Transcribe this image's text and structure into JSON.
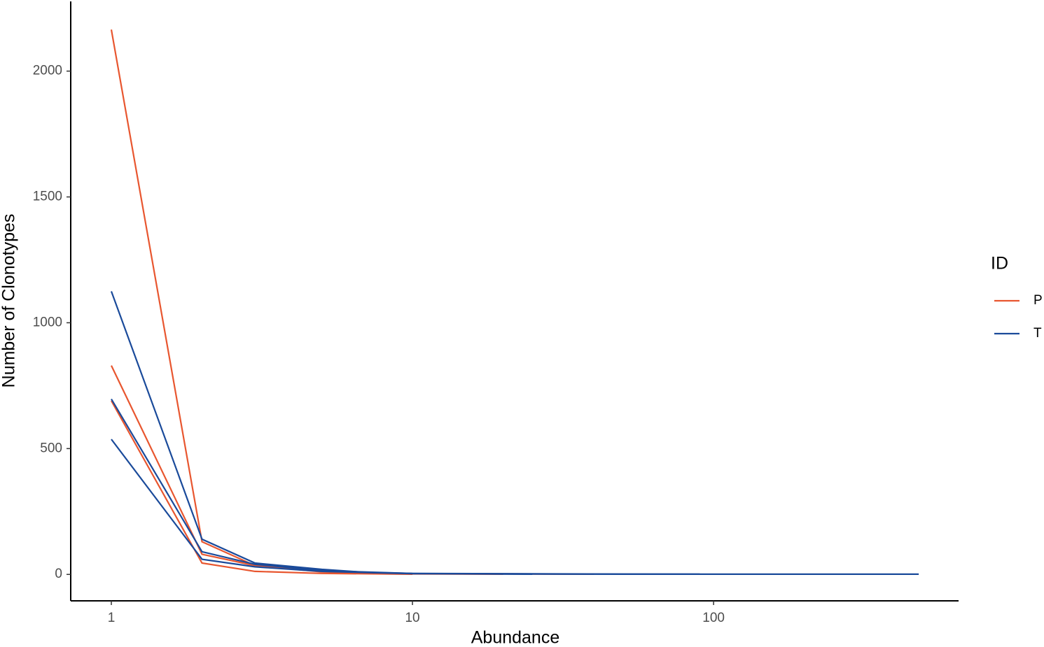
{
  "chart_data": {
    "type": "line",
    "x_label": "Abundance",
    "y_label": "Number of Clonotypes",
    "xscale": "log",
    "xlim": [
      0.733,
      651
    ],
    "xticks": [
      1,
      10,
      100
    ],
    "ylim": [
      -105,
      2277
    ],
    "yticks": [
      0,
      500,
      1000,
      1500,
      2000
    ],
    "legend_title": "ID",
    "legend_position": "right",
    "series": [
      {
        "name": "P",
        "color": "#e8562f",
        "lines": [
          {
            "x": [
              1,
              2,
              3,
              5,
              10,
              20,
              40
            ],
            "values": [
              2165,
              130,
              35,
              12,
              3,
              2,
              1
            ]
          },
          {
            "x": [
              1,
              2,
              3,
              5,
              10,
              20
            ],
            "values": [
              830,
              80,
              35,
              10,
              2,
              1
            ]
          },
          {
            "x": [
              1,
              2,
              3,
              5,
              10
            ],
            "values": [
              690,
              45,
              12,
              4,
              1
            ]
          }
        ]
      },
      {
        "name": "T",
        "color": "#1a4a9a",
        "lines": [
          {
            "x": [
              1,
              2,
              3,
              5,
              7,
              10,
              20,
              50,
              90,
              480
            ],
            "values": [
              1125,
              140,
              45,
              20,
              8,
              4,
              2,
              1,
              1,
              1
            ]
          },
          {
            "x": [
              1,
              2,
              3,
              5,
              10,
              30,
              90
            ],
            "values": [
              697,
              90,
              40,
              15,
              4,
              2,
              1
            ]
          },
          {
            "x": [
              1,
              2,
              3,
              5,
              10,
              25
            ],
            "values": [
              537,
              60,
              30,
              12,
              3,
              1
            ]
          }
        ]
      }
    ]
  }
}
